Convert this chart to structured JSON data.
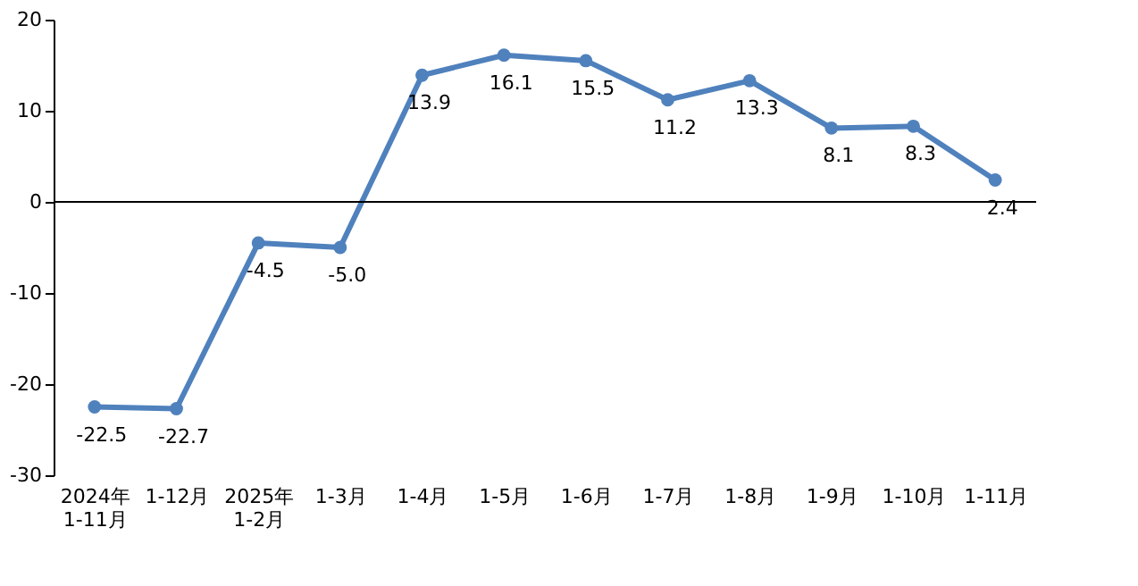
{
  "chart_data": {
    "type": "line",
    "categories": [
      "2024年\n1-11月",
      "1-12月",
      "2025年\n1-2月",
      "1-3月",
      "1-4月",
      "1-5月",
      "1-6月",
      "1-7月",
      "1-8月",
      "1-9月",
      "1-10月",
      "1-11月"
    ],
    "series": [
      {
        "color": "#4f81bd",
        "values": [
          -22.5,
          -22.7,
          -4.5,
          -5.0,
          13.9,
          16.1,
          15.5,
          11.2,
          13.3,
          8.1,
          8.3,
          2.4
        ],
        "value_labels": [
          "-22.5",
          "-22.7",
          "-4.5",
          "-5.0",
          "13.9",
          "16.1",
          "15.5",
          "11.2",
          "13.3",
          "8.1",
          "8.3",
          "2.4"
        ]
      }
    ],
    "ylim": [
      -30,
      20
    ],
    "yticks": [
      -30,
      -20,
      -10,
      0,
      10,
      20
    ],
    "ref_lines": [
      {
        "axis": "y",
        "value": 0
      }
    ],
    "grid": false,
    "marker": "circle",
    "line_style": "solid"
  }
}
